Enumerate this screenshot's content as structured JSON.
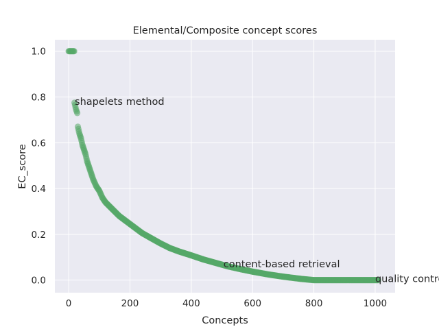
{
  "chart_data": {
    "type": "scatter",
    "title": "Elemental/Composite concept scores",
    "xlabel": "Concepts",
    "ylabel": "EC_score",
    "xlim": [
      -45,
      1065
    ],
    "ylim": [
      -0.055,
      1.05
    ],
    "xticks": [
      "0",
      "200",
      "400",
      "600",
      "800",
      "1000"
    ],
    "yticks": [
      "0.0",
      "0.2",
      "0.4",
      "0.6",
      "0.8",
      "1.0"
    ],
    "grid": true,
    "point_color": "#55a868",
    "curve": [
      [
        0,
        1.0
      ],
      [
        18,
        1.0
      ],
      [
        19,
        0.775
      ],
      [
        24,
        0.745
      ],
      [
        28,
        0.73
      ],
      [
        30,
        0.67
      ],
      [
        35,
        0.64
      ],
      [
        40,
        0.62
      ],
      [
        45,
        0.59
      ],
      [
        50,
        0.57
      ],
      [
        55,
        0.55
      ],
      [
        60,
        0.52
      ],
      [
        65,
        0.5
      ],
      [
        70,
        0.48
      ],
      [
        75,
        0.46
      ],
      [
        80,
        0.44
      ],
      [
        90,
        0.41
      ],
      [
        100,
        0.39
      ],
      [
        110,
        0.36
      ],
      [
        120,
        0.34
      ],
      [
        135,
        0.32
      ],
      [
        150,
        0.3
      ],
      [
        165,
        0.28
      ],
      [
        180,
        0.265
      ],
      [
        200,
        0.245
      ],
      [
        220,
        0.225
      ],
      [
        240,
        0.205
      ],
      [
        260,
        0.19
      ],
      [
        280,
        0.175
      ],
      [
        300,
        0.16
      ],
      [
        330,
        0.14
      ],
      [
        360,
        0.125
      ],
      [
        400,
        0.108
      ],
      [
        440,
        0.09
      ],
      [
        480,
        0.075
      ],
      [
        520,
        0.06
      ],
      [
        560,
        0.048
      ],
      [
        600,
        0.037
      ],
      [
        650,
        0.025
      ],
      [
        700,
        0.015
      ],
      [
        760,
        0.005
      ],
      [
        800,
        0.0
      ],
      [
        1010,
        0.0
      ]
    ],
    "annotations": [
      {
        "text": "shapelets method",
        "x": 20,
        "y": 0.775
      },
      {
        "text": "content-based retrieval",
        "x": 505,
        "y": 0.065
      },
      {
        "text": "quality control",
        "x": 1000,
        "y": 0.0
      }
    ]
  }
}
